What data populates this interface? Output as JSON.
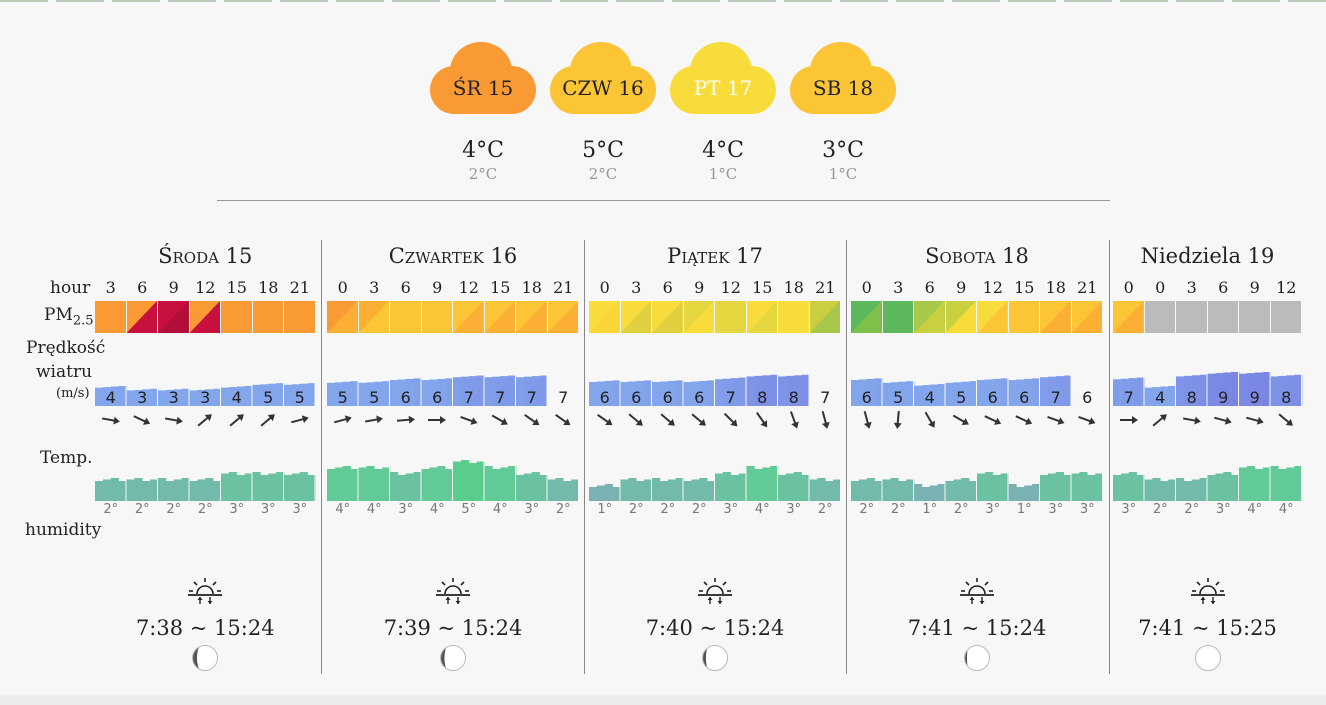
{
  "header_days": [
    {
      "label": "ŚR 15",
      "max": "4°C",
      "min": "2°C",
      "color": "#fa9a35",
      "text": "#222"
    },
    {
      "label": "CZW 16",
      "max": "5°C",
      "min": "2°C",
      "color": "#fbc535",
      "text": "#222"
    },
    {
      "label": "PT 17",
      "max": "4°C",
      "min": "1°C",
      "color": "#f8dc3c",
      "text": "#ffffff"
    },
    {
      "label": "SB 18",
      "max": "3°C",
      "min": "1°C",
      "color": "#fbc535",
      "text": "#222"
    }
  ],
  "labels": {
    "hour": "hour",
    "pm": "PM",
    "pm_sub": "2.5",
    "wind1": "Prędkość",
    "wind2": "wiatru",
    "wind_unit": "(m/s)",
    "temp": "Temp.",
    "humidity": "humidity"
  },
  "days": [
    {
      "title_first": "Ś",
      "title_rest": "roda",
      "title_num": "15",
      "sc": true,
      "hours": [
        "3",
        "6",
        "9",
        "12",
        "15",
        "18",
        "21"
      ],
      "pm": [
        [
          "#fa9a35",
          null
        ],
        [
          "#fa9a35",
          "#c8103e"
        ],
        [
          "#c8103e",
          "#b10f3a"
        ],
        [
          "#fa9a35",
          "#c8103e"
        ],
        [
          "#fa9a35",
          null
        ],
        [
          "#fa9a35",
          null
        ],
        [
          "#fa9a35",
          null
        ]
      ],
      "wind": [
        "4",
        "3",
        "3",
        "3",
        "4",
        "5",
        "5"
      ],
      "arrows": [
        10,
        25,
        10,
        -40,
        -40,
        -40,
        -15
      ],
      "temps": [
        "2°",
        "2°",
        "2°",
        "2°",
        "3°",
        "3°",
        "3°"
      ],
      "sun": "7:38 ~ 15:24",
      "moon": 0.35
    },
    {
      "title_first": "C",
      "title_rest": "zwartek",
      "title_num": "16",
      "sc": true,
      "hours": [
        "0",
        "3",
        "6",
        "9",
        "12",
        "15",
        "18",
        "21"
      ],
      "pm": [
        [
          "#fa9a35",
          "#fbb035"
        ],
        [
          "#fbb035",
          "#fbc535"
        ],
        [
          "#fbc535",
          null
        ],
        [
          "#fbc535",
          null
        ],
        [
          "#fbc535",
          "#fbb035"
        ],
        [
          "#fbc535",
          "#fbb035"
        ],
        [
          "#fbc535",
          "#fbb035"
        ],
        [
          "#fbc535",
          "#fbb035"
        ]
      ],
      "wind": [
        "5",
        "5",
        "6",
        "6",
        "7",
        "7",
        "7",
        "7"
      ],
      "arrows": [
        -15,
        -10,
        -5,
        0,
        20,
        30,
        35,
        35
      ],
      "temps": [
        "4°",
        "4°",
        "3°",
        "4°",
        "5°",
        "4°",
        "3°",
        "2°"
      ],
      "sun": "7:39 ~ 15:24",
      "moon": 0.3
    },
    {
      "title_first": "P",
      "title_rest": "iątek",
      "title_num": "17",
      "sc": true,
      "hours": [
        "0",
        "3",
        "6",
        "9",
        "12",
        "15",
        "18",
        "21"
      ],
      "pm": [
        [
          "#f8dc3c",
          "#fbd535"
        ],
        [
          "#f8dc3c",
          "#e0d040"
        ],
        [
          "#f8dc3c",
          "#e0d040"
        ],
        [
          "#e6d640",
          "#f8dc3c"
        ],
        [
          "#e6d640",
          null
        ],
        [
          "#f8dc3c",
          "#e6d640"
        ],
        [
          "#f8dc3c",
          null
        ],
        [
          "#c9cf40",
          "#a6c748"
        ]
      ],
      "wind": [
        "6",
        "6",
        "6",
        "6",
        "7",
        "8",
        "8",
        "7"
      ],
      "arrows": [
        35,
        40,
        40,
        40,
        45,
        55,
        70,
        75
      ],
      "temps": [
        "1°",
        "2°",
        "2°",
        "2°",
        "3°",
        "4°",
        "3°",
        "2°"
      ],
      "sun": "7:40 ~ 15:24",
      "moon": 0.25
    },
    {
      "title_first": "S",
      "title_rest": "obota",
      "title_num": "18",
      "sc": true,
      "hours": [
        "0",
        "3",
        "6",
        "9",
        "12",
        "15",
        "18",
        "21"
      ],
      "pm": [
        [
          "#5cb85c",
          "#7dc14a"
        ],
        [
          "#5cb85c",
          null
        ],
        [
          "#a7c84a",
          "#c8cf40"
        ],
        [
          "#c8cf40",
          "#f8dc3c"
        ],
        [
          "#f8dc3c",
          "#fbc535"
        ],
        [
          "#fbc535",
          null
        ],
        [
          "#fbc535",
          "#fbb035"
        ],
        [
          "#fbc535",
          "#fbb035"
        ]
      ],
      "wind": [
        "6",
        "5",
        "4",
        "5",
        "6",
        "6",
        "7",
        "6"
      ],
      "arrows": [
        75,
        95,
        60,
        30,
        25,
        25,
        20,
        20
      ],
      "temps": [
        "2°",
        "2°",
        "1°",
        "2°",
        "3°",
        "1°",
        "3°",
        "3°"
      ],
      "sun": "7:41 ~ 15:24",
      "moon": 0.15
    },
    {
      "title_first": "",
      "title_rest": "Niedziela",
      "title_num": "19",
      "sc": false,
      "hours": [
        "0",
        "0",
        "3",
        "6",
        "9",
        "12"
      ],
      "pm": [
        [
          "#fbc535",
          "#fbb035"
        ],
        [
          "#bbbbbb",
          null
        ],
        [
          "#bbbbbb",
          null
        ],
        [
          "#bbbbbb",
          null
        ],
        [
          "#bbbbbb",
          null
        ],
        [
          "#bbbbbb",
          null
        ]
      ],
      "wind": [
        "7",
        "4",
        "8",
        "9",
        "9",
        "8"
      ],
      "arrows": [
        0,
        -40,
        10,
        15,
        15,
        40
      ],
      "temps": [
        "3°",
        "2°",
        "2°",
        "3°",
        "4°",
        "4°"
      ],
      "sun": "7:41 ~ 15:25",
      "moon": 0.02
    }
  ]
}
